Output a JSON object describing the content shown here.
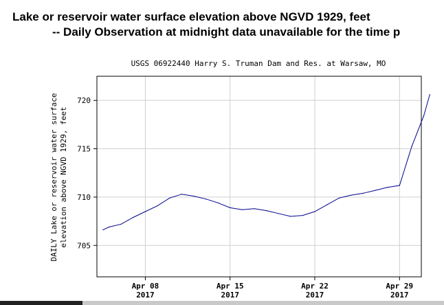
{
  "page": {
    "title_line1": "Lake or reservoir water surface elevation above NGVD 1929, feet",
    "title_line2": "-- Daily Observation at midnight data unavailable for the time p"
  },
  "chart_data": {
    "type": "line",
    "title": "USGS 06922440 Harry S. Truman Dam and Res. at Warsaw, MO",
    "ylabel_line1": "DAILY Lake or reservoir water surface",
    "ylabel_line2": "elevation above NGVD 1929, feet",
    "xlabel": "",
    "ylim": [
      701.75,
      722.5
    ],
    "xlim": [
      0,
      26.8
    ],
    "grid": true,
    "line_color": "#00008b",
    "yticks": [
      705,
      710,
      715,
      720
    ],
    "xticks": [
      {
        "value": 4,
        "label": "Apr 08",
        "year": "2017"
      },
      {
        "value": 11,
        "label": "Apr 15",
        "year": "2017"
      },
      {
        "value": 18,
        "label": "Apr 22",
        "year": "2017"
      },
      {
        "value": 25,
        "label": "Apr 29",
        "year": "2017"
      }
    ],
    "series": [
      {
        "name": "Daily water surface elevation",
        "x": [
          0.5,
          1,
          2,
          3,
          4,
          5,
          6,
          7,
          8,
          9,
          10,
          11,
          12,
          13,
          14,
          15,
          16,
          17,
          18,
          19,
          20,
          21,
          22,
          23,
          24,
          25,
          26,
          27,
          27.5
        ],
        "values": [
          706.6,
          706.9,
          707.2,
          707.9,
          708.5,
          709.1,
          709.9,
          710.3,
          710.1,
          709.8,
          709.4,
          708.9,
          708.7,
          708.8,
          708.6,
          708.3,
          708.0,
          708.1,
          708.5,
          709.2,
          709.9,
          710.2,
          710.4,
          710.7,
          711.0,
          711.2,
          715.2,
          718.4,
          720.6
        ]
      }
    ]
  }
}
